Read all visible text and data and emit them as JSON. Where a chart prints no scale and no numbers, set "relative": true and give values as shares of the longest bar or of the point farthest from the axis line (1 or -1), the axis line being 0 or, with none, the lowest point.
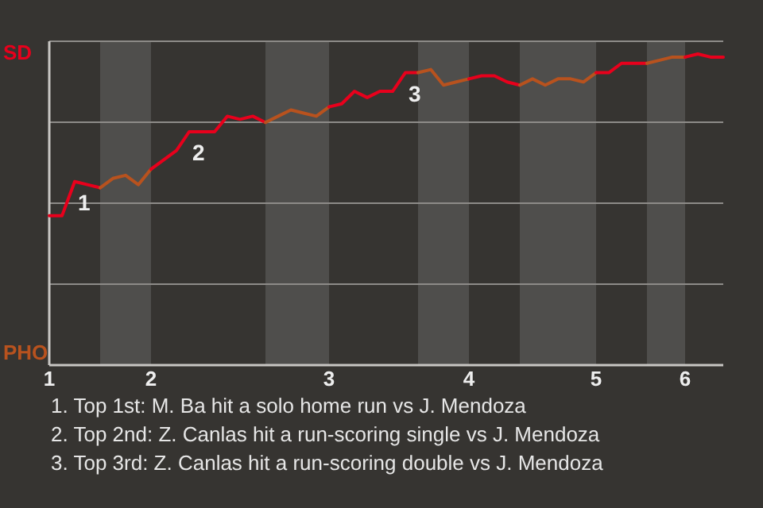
{
  "chart_data": {
    "type": "line",
    "relative": true,
    "categories": [
      "1",
      null,
      null,
      null,
      null,
      null,
      null,
      null,
      "2",
      null,
      null,
      null,
      null,
      null,
      null,
      null,
      null,
      null,
      null,
      null,
      null,
      null,
      "3",
      null,
      null,
      null,
      null,
      null,
      null,
      null,
      null,
      null,
      null,
      "4",
      null,
      null,
      null,
      null,
      null,
      null,
      null,
      null,
      null,
      "5",
      null,
      null,
      null,
      null,
      null,
      null,
      "6",
      null,
      null,
      null
    ],
    "grid": "y",
    "marker": "none",
    "line_style": "solid",
    "series": [
      {
        "color": "#e8001c",
        "values": [
          0.48,
          0.48,
          0.59,
          0.58,
          0.57,
          null,
          null,
          null,
          null,
          null,
          null,
          null,
          null,
          null,
          null,
          null,
          null,
          null,
          null,
          null,
          null,
          null,
          null,
          null,
          null,
          null,
          null,
          null,
          null,
          null,
          null,
          null,
          null,
          null,
          null,
          null,
          null,
          null,
          null,
          null,
          null,
          null,
          null,
          null,
          null,
          null,
          null,
          null,
          null,
          null,
          null,
          null,
          null,
          null
        ]
      },
      {
        "color": "#b8521e",
        "values": [
          null,
          null,
          null,
          null,
          0.57,
          0.6,
          0.61,
          0.58,
          0.63,
          null,
          null,
          null,
          null,
          null,
          null,
          null,
          null,
          null,
          null,
          null,
          null,
          null,
          null,
          null,
          null,
          null,
          null,
          null,
          null,
          null,
          null,
          null,
          null,
          null,
          null,
          null,
          null,
          null,
          null,
          null,
          null,
          null,
          null,
          null,
          null,
          null,
          null,
          null,
          null,
          null,
          null,
          null,
          null,
          null
        ]
      },
      {
        "color": "#e8001c",
        "values": [
          null,
          null,
          null,
          null,
          null,
          null,
          null,
          null,
          0.63,
          0.66,
          0.69,
          0.75,
          0.75,
          0.75,
          0.8,
          0.79,
          0.8,
          0.78,
          null,
          null,
          null,
          null,
          null,
          null,
          null,
          null,
          null,
          null,
          null,
          null,
          null,
          null,
          null,
          null,
          null,
          null,
          null,
          null,
          null,
          null,
          null,
          null,
          null,
          null,
          null,
          null,
          null,
          null,
          null,
          null,
          null,
          null,
          null,
          null
        ]
      },
      {
        "color": "#b8521e",
        "values": [
          null,
          null,
          null,
          null,
          null,
          null,
          null,
          null,
          null,
          null,
          null,
          null,
          null,
          null,
          null,
          null,
          null,
          0.78,
          0.8,
          0.82,
          0.81,
          0.8,
          0.83,
          null,
          null,
          null,
          null,
          null,
          null,
          null,
          null,
          null,
          null,
          null,
          null,
          null,
          null,
          null,
          null,
          null,
          null,
          null,
          null,
          null,
          null,
          null,
          null,
          null,
          null,
          null,
          null,
          null,
          null,
          null
        ]
      },
      {
        "color": "#e8001c",
        "values": [
          null,
          null,
          null,
          null,
          null,
          null,
          null,
          null,
          null,
          null,
          null,
          null,
          null,
          null,
          null,
          null,
          null,
          null,
          null,
          null,
          null,
          null,
          0.83,
          0.84,
          0.88,
          0.86,
          0.88,
          0.88,
          0.94,
          0.94,
          null,
          null,
          null,
          null,
          null,
          null,
          null,
          null,
          null,
          null,
          null,
          null,
          null,
          null,
          null,
          null,
          null,
          null,
          null,
          null,
          null,
          null,
          null,
          null
        ]
      },
      {
        "color": "#b8521e",
        "values": [
          null,
          null,
          null,
          null,
          null,
          null,
          null,
          null,
          null,
          null,
          null,
          null,
          null,
          null,
          null,
          null,
          null,
          null,
          null,
          null,
          null,
          null,
          null,
          null,
          null,
          null,
          null,
          null,
          null,
          0.94,
          0.95,
          0.9,
          0.91,
          0.92,
          null,
          null,
          null,
          null,
          null,
          null,
          null,
          null,
          null,
          null,
          null,
          null,
          null,
          null,
          null,
          null,
          null,
          null,
          null,
          null
        ]
      },
      {
        "color": "#e8001c",
        "values": [
          null,
          null,
          null,
          null,
          null,
          null,
          null,
          null,
          null,
          null,
          null,
          null,
          null,
          null,
          null,
          null,
          null,
          null,
          null,
          null,
          null,
          null,
          null,
          null,
          null,
          null,
          null,
          null,
          null,
          null,
          null,
          null,
          null,
          0.92,
          0.93,
          0.93,
          0.91,
          0.9,
          null,
          null,
          null,
          null,
          null,
          null,
          null,
          null,
          null,
          null,
          null,
          null,
          null,
          null,
          null,
          null
        ]
      },
      {
        "color": "#b8521e",
        "values": [
          null,
          null,
          null,
          null,
          null,
          null,
          null,
          null,
          null,
          null,
          null,
          null,
          null,
          null,
          null,
          null,
          null,
          null,
          null,
          null,
          null,
          null,
          null,
          null,
          null,
          null,
          null,
          null,
          null,
          null,
          null,
          null,
          null,
          null,
          null,
          null,
          null,
          0.9,
          0.92,
          0.9,
          0.92,
          0.92,
          0.91,
          0.94,
          null,
          null,
          null,
          null,
          null,
          null,
          null,
          null,
          null,
          null
        ]
      },
      {
        "color": "#e8001c",
        "values": [
          null,
          null,
          null,
          null,
          null,
          null,
          null,
          null,
          null,
          null,
          null,
          null,
          null,
          null,
          null,
          null,
          null,
          null,
          null,
          null,
          null,
          null,
          null,
          null,
          null,
          null,
          null,
          null,
          null,
          null,
          null,
          null,
          null,
          null,
          null,
          null,
          null,
          null,
          null,
          null,
          null,
          null,
          null,
          0.94,
          0.94,
          0.97,
          0.97,
          0.97,
          null,
          null,
          null,
          null,
          null,
          null
        ]
      },
      {
        "color": "#b8521e",
        "values": [
          null,
          null,
          null,
          null,
          null,
          null,
          null,
          null,
          null,
          null,
          null,
          null,
          null,
          null,
          null,
          null,
          null,
          null,
          null,
          null,
          null,
          null,
          null,
          null,
          null,
          null,
          null,
          null,
          null,
          null,
          null,
          null,
          null,
          null,
          null,
          null,
          null,
          null,
          null,
          null,
          null,
          null,
          null,
          null,
          null,
          null,
          null,
          0.97,
          0.98,
          0.99,
          0.99,
          null,
          null,
          null
        ]
      },
      {
        "color": "#e8001c",
        "values": [
          null,
          null,
          null,
          null,
          null,
          null,
          null,
          null,
          null,
          null,
          null,
          null,
          null,
          null,
          null,
          null,
          null,
          null,
          null,
          null,
          null,
          null,
          null,
          null,
          null,
          null,
          null,
          null,
          null,
          null,
          null,
          null,
          null,
          null,
          null,
          null,
          null,
          null,
          null,
          null,
          null,
          null,
          null,
          null,
          null,
          null,
          null,
          null,
          null,
          null,
          0.99,
          1,
          0.99,
          0.99
        ]
      }
    ],
    "annotations": [
      "SD",
      "PHO",
      {
        "text": "1",
        "y": 0.59
      },
      {
        "text": "2",
        "y": 0.75
      },
      {
        "text": "3",
        "y": 0.94
      },
      "1. Top 1st: M. Ba hit a solo home run vs J. Mendoza",
      "2. Top 2nd: Z. Canlas hit a run-scoring single vs J. Mendoza",
      "3. Top 3rd: Z. Canlas hit a run-scoring double vs J. Mendoza"
    ]
  }
}
